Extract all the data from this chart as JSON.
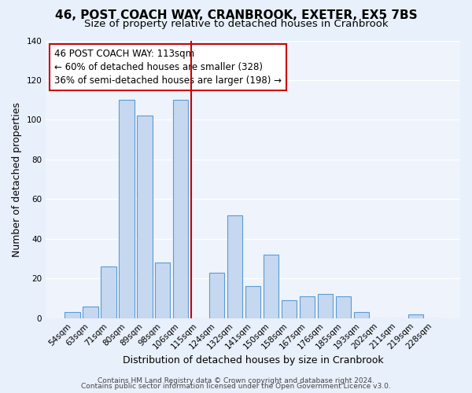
{
  "title": "46, POST COACH WAY, CRANBROOK, EXETER, EX5 7BS",
  "subtitle": "Size of property relative to detached houses in Cranbrook",
  "xlabel": "Distribution of detached houses by size in Cranbrook",
  "ylabel": "Number of detached properties",
  "categories": [
    "54sqm",
    "63sqm",
    "71sqm",
    "80sqm",
    "89sqm",
    "98sqm",
    "106sqm",
    "115sqm",
    "124sqm",
    "132sqm",
    "141sqm",
    "150sqm",
    "158sqm",
    "167sqm",
    "176sqm",
    "185sqm",
    "193sqm",
    "202sqm",
    "211sqm",
    "219sqm",
    "228sqm"
  ],
  "values": [
    3,
    6,
    26,
    110,
    102,
    28,
    110,
    0,
    23,
    52,
    16,
    32,
    9,
    11,
    12,
    11,
    3,
    0,
    0,
    2,
    0
  ],
  "bar_color": "#c5d8f0",
  "bar_edge_color": "#5b9bd5",
  "vline_index": 7,
  "vline_color": "#cc0000",
  "annotation_text": "46 POST COACH WAY: 113sqm\n← 60% of detached houses are smaller (328)\n36% of semi-detached houses are larger (198) →",
  "ylim": [
    0,
    140
  ],
  "yticks": [
    0,
    20,
    40,
    60,
    80,
    100,
    120,
    140
  ],
  "bg_color": "#e8f0fb",
  "plot_bg_color": "#eef3fc",
  "footer_line1": "Contains HM Land Registry data © Crown copyright and database right 2024.",
  "footer_line2": "Contains public sector information licensed under the Open Government Licence v3.0.",
  "title_fontsize": 11,
  "subtitle_fontsize": 9.5,
  "xlabel_fontsize": 9,
  "ylabel_fontsize": 9,
  "tick_fontsize": 7.5,
  "annotation_fontsize": 8.5,
  "footer_fontsize": 6.5
}
